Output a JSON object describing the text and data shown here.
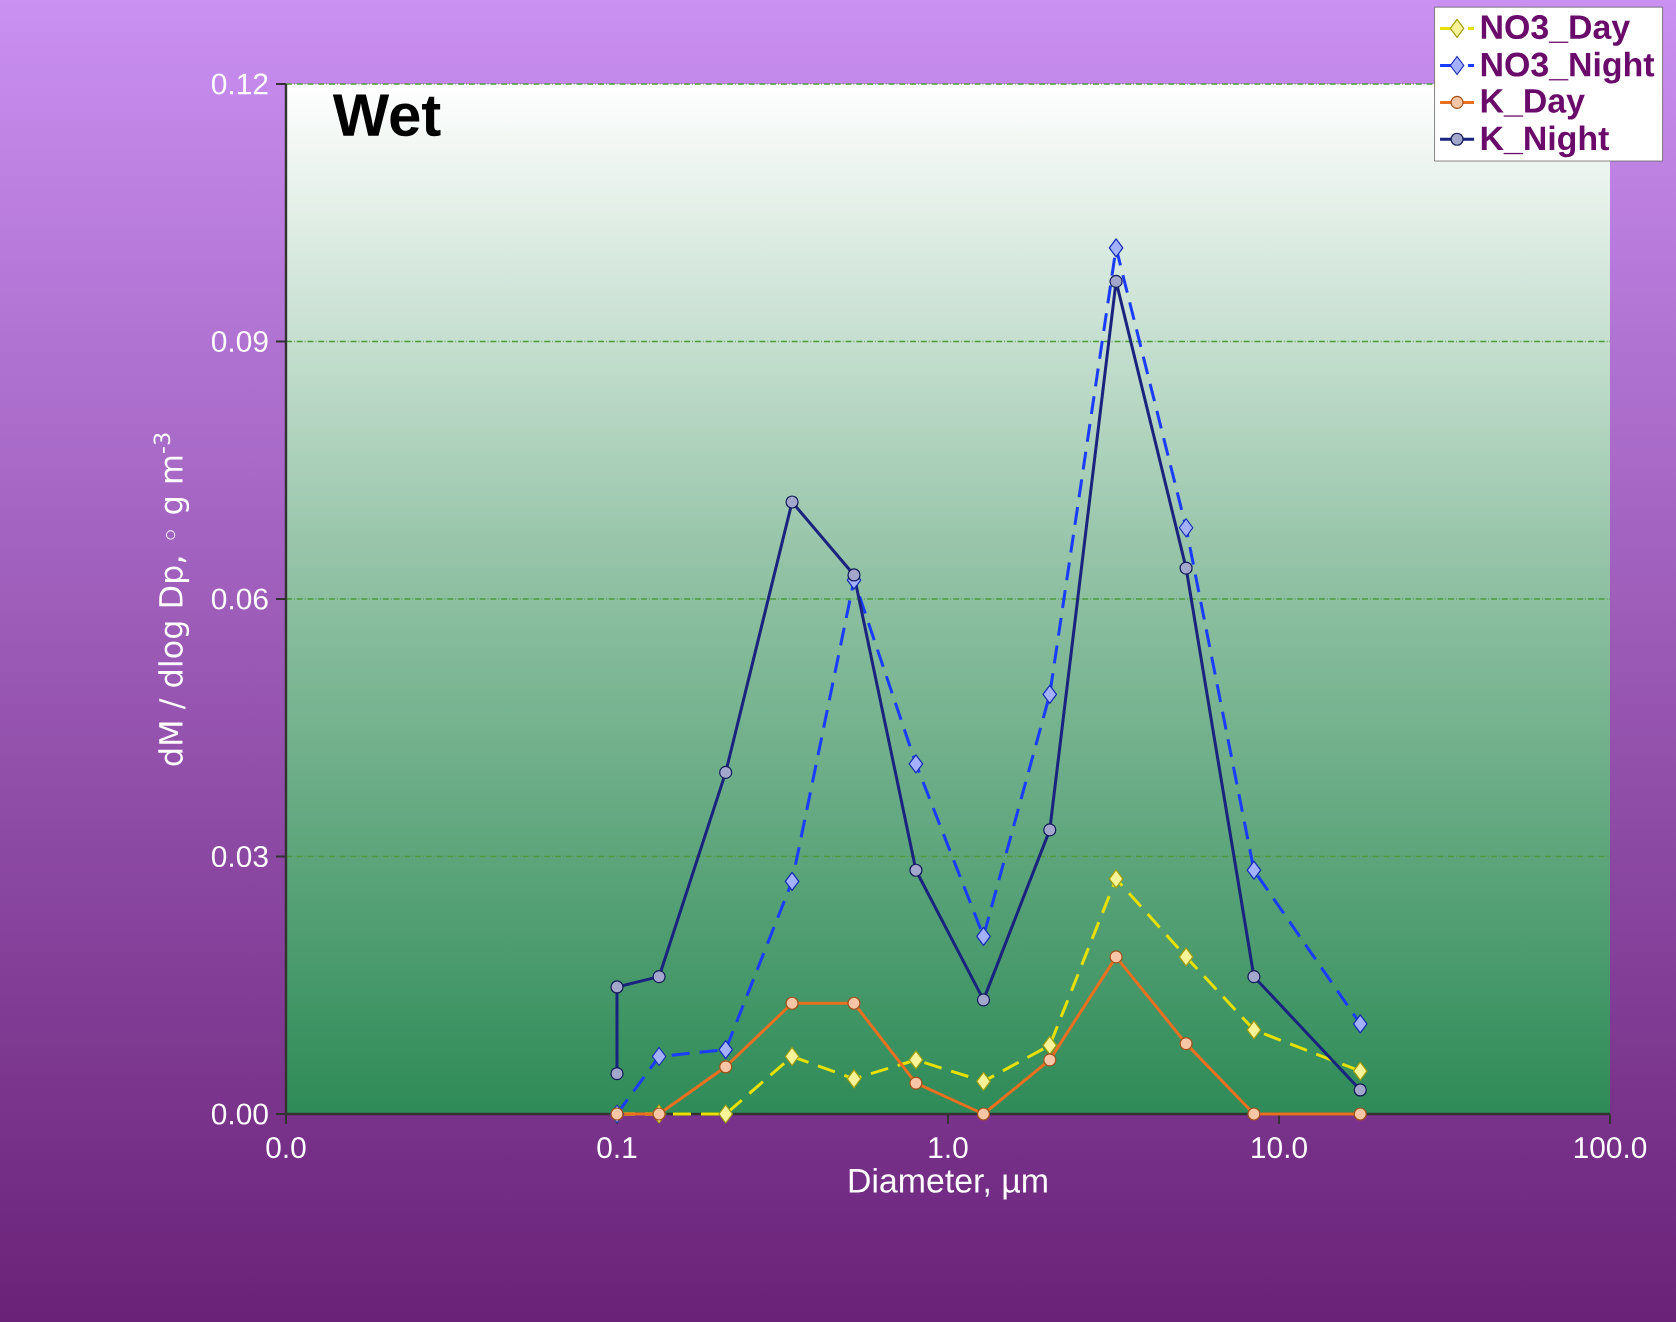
{
  "chart_data": {
    "type": "line",
    "title": "Wet",
    "xlabel": "Diameter, µm",
    "ylabel": "dM / dlog Dp, ◦ g m$^{-3}$",
    "log": "x",
    "xlim": [
      0.01,
      100
    ],
    "ylim": [
      0,
      0.12
    ],
    "xticks": [
      {
        "value": 0.01,
        "label": "0.0"
      },
      0.1,
      {
        "value": 1,
        "label": "1.0"
      },
      {
        "value": 10,
        "label": "10.0"
      },
      {
        "value": 100,
        "label": "100.0"
      }
    ],
    "yticks": [
      {
        "value": 0,
        "label": "0.00"
      },
      {
        "value": 0.03,
        "label": "0.03"
      },
      {
        "value": 0.06,
        "label": "0.06"
      },
      {
        "value": 0.09,
        "label": "0.09"
      },
      {
        "value": 0.12,
        "label": "0.12"
      }
    ],
    "grid": "y",
    "legend": "top right",
    "series": [
      {
        "name": "NO3_Day",
        "color": "#e8e000",
        "line_style": "dashed",
        "marker": "diamond",
        "x": [
          0.1,
          0.134,
          0.213,
          0.338,
          0.52,
          0.8,
          1.28,
          2.03,
          3.22,
          5.24,
          8.4,
          17.6
        ],
        "values": [
          0,
          0,
          0,
          0.0067,
          0.0041,
          0.0063,
          0.0038,
          0.008,
          0.0274,
          0.0183,
          0.0098,
          0.005
        ]
      },
      {
        "name": "NO3_Night",
        "color": "#1a3cff",
        "line_style": "dashed",
        "marker": "diamond",
        "x": [
          0.1,
          0.134,
          0.213,
          0.338,
          0.52,
          0.8,
          1.28,
          2.03,
          3.22,
          5.24,
          8.4,
          17.6
        ],
        "values": [
          0,
          0.0067,
          0.0075,
          0.0271,
          0.0622,
          0.0408,
          0.0207,
          0.0489,
          0.1009,
          0.0683,
          0.0284,
          0.0105
        ]
      },
      {
        "name": "K_Day",
        "color": "#e87020",
        "line_style": "solid",
        "marker": "circle",
        "x": [
          0.1,
          0.134,
          0.213,
          0.338,
          0.52,
          0.8,
          1.28,
          2.03,
          3.22,
          5.24,
          8.4,
          17.6
        ],
        "values": [
          0,
          0,
          0.0055,
          0.0129,
          0.0129,
          0.0036,
          0,
          0.0063,
          0.0183,
          0.0082,
          0,
          0
        ]
      },
      {
        "name": "K_Night",
        "color": "#1a237e",
        "line_style": "solid",
        "marker": "circle",
        "x": [
          0.1,
          0.1,
          0.134,
          0.213,
          0.338,
          0.52,
          0.8,
          1.28,
          2.03,
          3.22,
          5.24,
          8.4,
          17.6
        ],
        "values": [
          0.0047,
          0.0148,
          0.016,
          0.0398,
          0.0713,
          0.0628,
          0.0284,
          0.0133,
          0.0331,
          0.097,
          0.0636,
          0.016,
          0.0028
        ]
      }
    ]
  }
}
